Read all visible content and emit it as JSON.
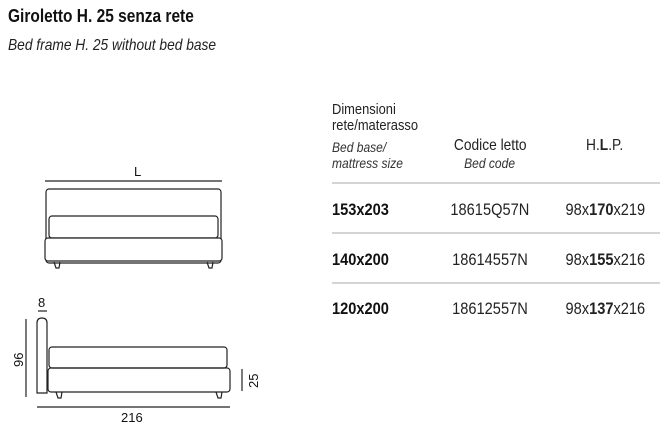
{
  "header": {
    "title": "Giroletto H. 25 senza rete",
    "subtitle": "Bed frame H. 25 without bed base"
  },
  "drawing": {
    "front_label": "L",
    "headboard_thickness": "8",
    "height": "96",
    "frame_height": "25",
    "length": "216"
  },
  "table": {
    "col1_it_line1": "Dimensioni",
    "col1_it_line2": "rete/materasso",
    "col1_en_line1": "Bed base/",
    "col1_en_line2": "mattress size",
    "col2_it": "Codice letto",
    "col2_en": "Bed code",
    "col3_pre": "H.",
    "col3_bold": "L",
    "col3_post": ".P.",
    "rows": [
      {
        "size": "153x203",
        "code": "18615Q57N",
        "h": "98x",
        "l": "170",
        "p": "x219"
      },
      {
        "size": "140x200",
        "code": "18614557N",
        "h": "98x",
        "l": "155",
        "p": "x216"
      },
      {
        "size": "120x200",
        "code": "18612557N",
        "h": "98x",
        "l": "137",
        "p": "x216"
      }
    ]
  }
}
